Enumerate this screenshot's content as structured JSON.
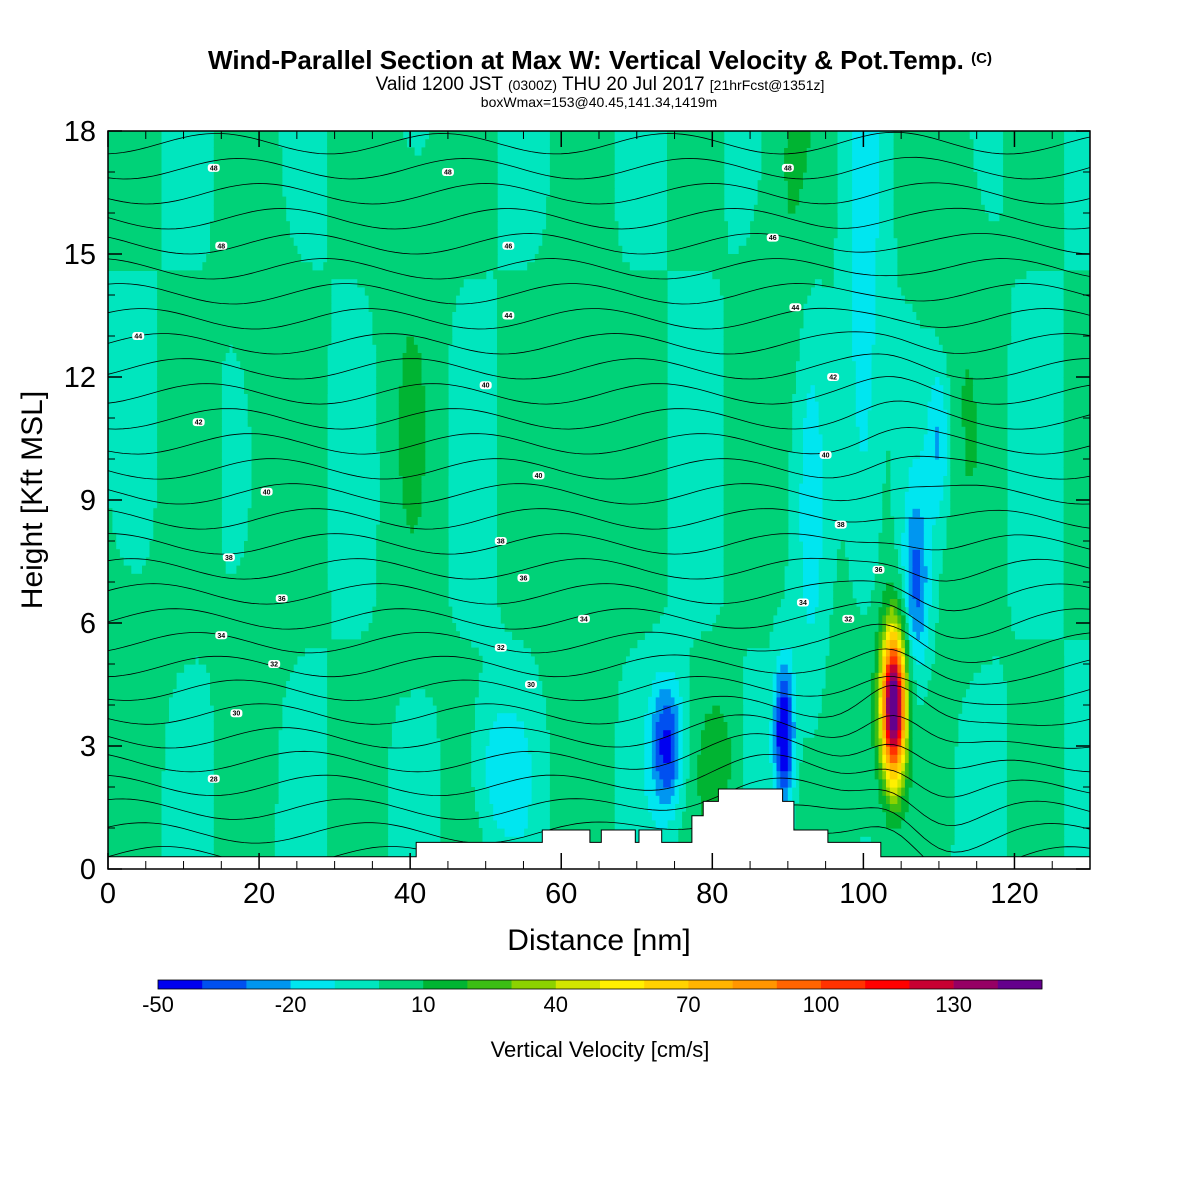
{
  "title": {
    "main": "Wind-Parallel Section at Max W: Vertical Velocity & Pot.Temp.",
    "copyright": "(C)",
    "sub_a": "Valid 1200 JST",
    "sub_b": "(0300Z)",
    "sub_c": "THU 20 Jul 2017",
    "sub_d": "[21hrFcst@1351z]",
    "sub2": "boxWmax=153@40.45,141.34,1419m"
  },
  "chart_data": {
    "type": "heatmap",
    "xlabel": "Distance [nm]",
    "ylabel": "Height [Kft MSL]",
    "xlim": [
      0,
      130
    ],
    "ylim": [
      0,
      18
    ],
    "x_ticks": [
      0,
      20,
      40,
      60,
      80,
      100,
      120
    ],
    "y_ticks": [
      0,
      3,
      6,
      9,
      12,
      15,
      18
    ],
    "background_fill": "Vertical Velocity",
    "colorbar": {
      "title": "Vertical Velocity [cm/s]",
      "labels": [
        -50,
        -20,
        10,
        40,
        70,
        100,
        130
      ],
      "levels": [
        -50,
        -40,
        -30,
        -20,
        -10,
        0,
        10,
        20,
        30,
        40,
        50,
        60,
        70,
        80,
        90,
        100,
        110,
        120,
        130,
        140,
        150
      ],
      "colors": [
        "#0000f0",
        "#0050f0",
        "#0096f0",
        "#00e6f0",
        "#00e6be",
        "#00d278",
        "#00b432",
        "#3cbe14",
        "#8cd200",
        "#d2e600",
        "#fff000",
        "#ffd200",
        "#ffb400",
        "#ff9600",
        "#ff6400",
        "#ff3200",
        "#ff0000",
        "#c80032",
        "#960064",
        "#64008c"
      ]
    },
    "terrain_kft": [
      [
        0,
        0.3
      ],
      [
        40.8,
        0.3
      ],
      [
        40.8,
        0.65
      ],
      [
        57.5,
        0.65
      ],
      [
        57.5,
        0.95
      ],
      [
        63.8,
        0.95
      ],
      [
        63.8,
        0.65
      ],
      [
        65.3,
        0.65
      ],
      [
        65.3,
        0.95
      ],
      [
        69.8,
        0.95
      ],
      [
        69.8,
        0.65
      ],
      [
        70.3,
        0.65
      ],
      [
        70.3,
        0.95
      ],
      [
        73.3,
        0.95
      ],
      [
        73.3,
        0.65
      ],
      [
        77.3,
        0.65
      ],
      [
        77.3,
        1.3
      ],
      [
        78.8,
        1.3
      ],
      [
        78.8,
        1.65
      ],
      [
        80.8,
        1.65
      ],
      [
        80.8,
        1.95
      ],
      [
        89.3,
        1.95
      ],
      [
        89.3,
        1.65
      ],
      [
        90.8,
        1.65
      ],
      [
        90.8,
        0.95
      ],
      [
        95.3,
        0.95
      ],
      [
        95.3,
        0.65
      ],
      [
        102.3,
        0.65
      ],
      [
        102.3,
        0.3
      ],
      [
        130,
        0.3
      ]
    ],
    "updraft_core": {
      "x": 104,
      "y_kft": 4.0,
      "max_cm_s": 153
    },
    "downdraft_cores": [
      {
        "x": 53,
        "y_kft": 2.4,
        "min_cm_s": -20
      },
      {
        "x": 74,
        "y_kft": 3.0,
        "min_cm_s": -40
      },
      {
        "x": 89.5,
        "y_kft": 3.4,
        "min_cm_s": -50
      },
      {
        "x": 107,
        "y_kft": 7.0,
        "min_cm_s": -30
      }
    ],
    "contour_labels": [
      {
        "text": "48",
        "x": 14,
        "y_kft": 17.1
      },
      {
        "text": "48",
        "x": 45,
        "y_kft": 17.0
      },
      {
        "text": "48",
        "x": 90,
        "y_kft": 17.1
      },
      {
        "text": "48",
        "x": 15,
        "y_kft": 15.2
      },
      {
        "text": "46",
        "x": 53,
        "y_kft": 15.2
      },
      {
        "text": "46",
        "x": 88,
        "y_kft": 15.4
      },
      {
        "text": "44",
        "x": 4,
        "y_kft": 13.0
      },
      {
        "text": "44",
        "x": 53,
        "y_kft": 13.5
      },
      {
        "text": "44",
        "x": 91,
        "y_kft": 13.7
      },
      {
        "text": "42",
        "x": 12,
        "y_kft": 10.9
      },
      {
        "text": "40",
        "x": 50,
        "y_kft": 11.8
      },
      {
        "text": "42",
        "x": 96,
        "y_kft": 12.0
      },
      {
        "text": "40",
        "x": 21,
        "y_kft": 9.2
      },
      {
        "text": "40",
        "x": 57,
        "y_kft": 9.6
      },
      {
        "text": "40",
        "x": 95,
        "y_kft": 10.1
      },
      {
        "text": "38",
        "x": 52,
        "y_kft": 8.0
      },
      {
        "text": "38",
        "x": 97,
        "y_kft": 8.4
      },
      {
        "text": "38",
        "x": 16,
        "y_kft": 7.6
      },
      {
        "text": "36",
        "x": 55,
        "y_kft": 7.1
      },
      {
        "text": "36",
        "x": 23,
        "y_kft": 6.6
      },
      {
        "text": "36",
        "x": 102,
        "y_kft": 7.3
      },
      {
        "text": "34",
        "x": 15,
        "y_kft": 5.7
      },
      {
        "text": "34",
        "x": 63,
        "y_kft": 6.1
      },
      {
        "text": "34",
        "x": 92,
        "y_kft": 6.5
      },
      {
        "text": "32",
        "x": 22,
        "y_kft": 5.0
      },
      {
        "text": "32",
        "x": 52,
        "y_kft": 5.4
      },
      {
        "text": "32",
        "x": 98,
        "y_kft": 6.1
      },
      {
        "text": "30",
        "x": 17,
        "y_kft": 3.8
      },
      {
        "text": "30",
        "x": 56,
        "y_kft": 4.5
      },
      {
        "text": "28",
        "x": 14,
        "y_kft": 2.2
      }
    ]
  }
}
